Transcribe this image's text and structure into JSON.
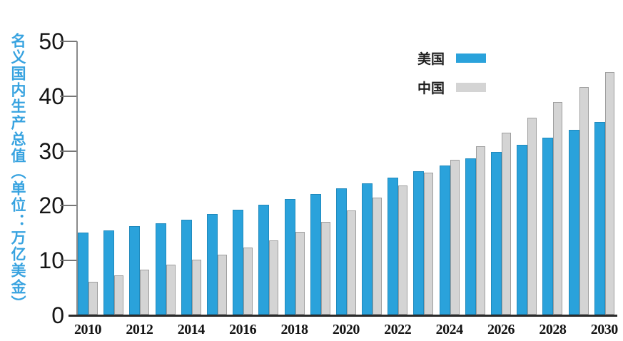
{
  "chart_data": {
    "type": "bar",
    "title": "",
    "ylabel": "名义国内生产总值（单位：万亿美金）",
    "xlabel": "",
    "ylim": [
      0,
      50
    ],
    "y_ticks": [
      0,
      10,
      20,
      30,
      40,
      50
    ],
    "grid": false,
    "legend_position": "top-right",
    "categories": [
      "2010",
      "2011",
      "2012",
      "2013",
      "2014",
      "2015",
      "2016",
      "2017",
      "2018",
      "2019",
      "2020",
      "2021",
      "2022",
      "2023",
      "2024",
      "2025",
      "2026",
      "2027",
      "2028",
      "2029",
      "2030"
    ],
    "x_tick_labels": [
      "2010",
      "2012",
      "2014",
      "2016",
      "2018",
      "2020",
      "2022",
      "2024",
      "2026",
      "2028",
      "2030"
    ],
    "series": [
      {
        "name": "美国",
        "color": "#2AA2DB",
        "values": [
          15.0,
          15.4,
          16.1,
          16.7,
          17.3,
          18.3,
          19.2,
          20.1,
          21.1,
          22.0,
          23.0,
          24.0,
          25.0,
          26.2,
          27.2,
          28.5,
          29.7,
          31.0,
          32.3,
          33.7,
          35.2
        ]
      },
      {
        "name": "中国",
        "color": "#D4D4D4",
        "values": [
          6.0,
          7.2,
          8.2,
          9.1,
          10.0,
          11.0,
          12.2,
          13.5,
          15.1,
          16.9,
          19.0,
          21.4,
          23.6,
          25.9,
          28.3,
          30.7,
          33.2,
          36.0,
          38.8,
          41.5,
          44.3
        ]
      }
    ]
  },
  "colors": {
    "us_bar": "#2AA2DB",
    "china_bar": "#D4D4D4",
    "axis_title_blue": "#38A3E0",
    "y_axis_line": "#8A8A8A",
    "x_axis_line": "#2B2B2B",
    "tick": "#777777",
    "text": "#151515",
    "background": "#FFFFFF"
  }
}
